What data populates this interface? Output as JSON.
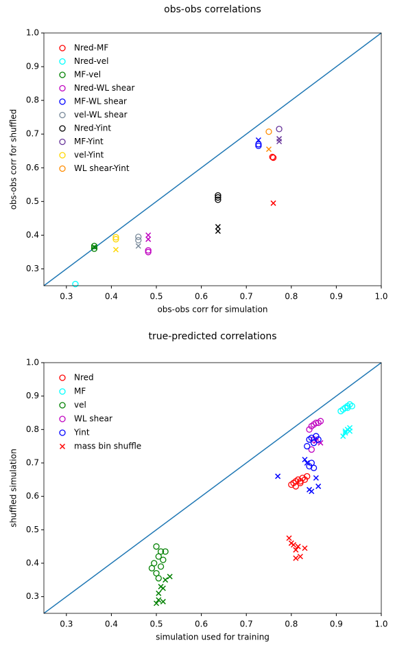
{
  "chart_data": [
    {
      "type": "scatter",
      "title": "obs-obs correlations",
      "xlabel": "obs-obs corr for simulation",
      "ylabel": "obs-obs corr for shuffled",
      "xlim": [
        0.25,
        1
      ],
      "ylim": [
        0.25,
        1
      ],
      "xticks": [
        0.3,
        0.4,
        0.5,
        0.6,
        0.7,
        0.8,
        0.9,
        {
          "value": 1,
          "label": "1.0"
        }
      ],
      "yticks": [
        0.3,
        0.4,
        0.5,
        0.6,
        0.7,
        0.8,
        0.9,
        {
          "value": 1,
          "label": "1.0"
        }
      ],
      "legend": "upper left",
      "series": [
        {
          "name": "Nred-MF",
          "color": "#ff0000",
          "x": [
            0.76,
            0.758
          ],
          "values": [
            0.63,
            0.632
          ],
          "cross_x": [
            0.76
          ],
          "cross_values": [
            0.495
          ]
        },
        {
          "name": "Nred-vel",
          "color": "#00ffff",
          "x": [
            0.32
          ],
          "values": [
            0.255
          ],
          "cross_x": [],
          "cross_values": []
        },
        {
          "name": "MF-vel",
          "color": "#008000",
          "x": [
            0.362,
            0.362
          ],
          "values": [
            0.36,
            0.368
          ],
          "cross_x": [
            0.362
          ],
          "cross_values": [
            0.365
          ]
        },
        {
          "name": "Nred-WL shear",
          "color": "#bf00bf",
          "x": [
            0.482,
            0.482
          ],
          "values": [
            0.35,
            0.355
          ],
          "cross_x": [
            0.482,
            0.482
          ],
          "cross_values": [
            0.388,
            0.4
          ]
        },
        {
          "name": "MF-WL shear",
          "color": "#0000ff",
          "x": [
            0.727,
            0.727
          ],
          "values": [
            0.665,
            0.67
          ],
          "cross_x": [
            0.727
          ],
          "cross_values": [
            0.682
          ]
        },
        {
          "name": "vel-WL shear",
          "color": "#778899",
          "x": [
            0.46,
            0.46
          ],
          "values": [
            0.385,
            0.395
          ],
          "cross_x": [
            0.46
          ],
          "cross_values": [
            0.368
          ]
        },
        {
          "name": "Nred-Yint",
          "color": "#000000",
          "x": [
            0.637,
            0.637,
            0.637
          ],
          "values": [
            0.505,
            0.512,
            0.518
          ],
          "cross_x": [
            0.637,
            0.637
          ],
          "cross_values": [
            0.412,
            0.425
          ]
        },
        {
          "name": "MF-Yint",
          "color": "#663399",
          "x": [
            0.773
          ],
          "values": [
            0.715
          ],
          "cross_x": [
            0.773,
            0.773
          ],
          "cross_values": [
            0.678,
            0.686
          ]
        },
        {
          "name": "vel-Yint",
          "color": "#ffd700",
          "x": [
            0.41,
            0.41
          ],
          "values": [
            0.388,
            0.394
          ],
          "cross_x": [
            0.41
          ],
          "cross_values": [
            0.357
          ]
        },
        {
          "name": "WL shear-Yint",
          "color": "#ff8c00",
          "x": [
            0.75
          ],
          "values": [
            0.707
          ],
          "cross_x": [
            0.75
          ],
          "cross_values": [
            0.655
          ]
        }
      ]
    },
    {
      "type": "scatter",
      "title": "true-predicted correlations",
      "xlabel": "simulation used for training",
      "ylabel": "shuffled simulation",
      "xlim": [
        0.25,
        1
      ],
      "ylim": [
        0.25,
        1
      ],
      "xticks": [
        0.3,
        0.4,
        0.5,
        0.6,
        0.7,
        0.8,
        0.9,
        {
          "value": 1,
          "label": "1.0"
        }
      ],
      "yticks": [
        0.3,
        0.4,
        0.5,
        0.6,
        0.7,
        0.8,
        0.9,
        {
          "value": 1,
          "label": "1.0"
        }
      ],
      "legend": "upper left",
      "cross_legend": {
        "name": "mass bin shuffle",
        "color": "#ff0000"
      },
      "series": [
        {
          "name": "Nred",
          "color": "#ff0000",
          "x": [
            0.8,
            0.805,
            0.81,
            0.815,
            0.82,
            0.825,
            0.83,
            0.835,
            0.81,
            0.82
          ],
          "values": [
            0.635,
            0.64,
            0.645,
            0.65,
            0.645,
            0.655,
            0.65,
            0.66,
            0.63,
            0.64
          ],
          "cross_x": [
            0.795,
            0.805,
            0.81,
            0.815,
            0.82,
            0.83,
            0.81,
            0.8
          ],
          "cross_values": [
            0.475,
            0.455,
            0.44,
            0.45,
            0.42,
            0.445,
            0.415,
            0.46
          ]
        },
        {
          "name": "MF",
          "color": "#00ffff",
          "x": [
            0.91,
            0.915,
            0.92,
            0.925,
            0.93,
            0.935,
            0.925
          ],
          "values": [
            0.855,
            0.86,
            0.865,
            0.87,
            0.875,
            0.87,
            0.865
          ],
          "cross_x": [
            0.915,
            0.92,
            0.925,
            0.93,
            0.92,
            0.93
          ],
          "cross_values": [
            0.78,
            0.795,
            0.8,
            0.805,
            0.79,
            0.795
          ]
        },
        {
          "name": "vel",
          "color": "#008000",
          "x": [
            0.49,
            0.495,
            0.5,
            0.505,
            0.51,
            0.515,
            0.52,
            0.5,
            0.51,
            0.505
          ],
          "values": [
            0.385,
            0.4,
            0.45,
            0.42,
            0.435,
            0.41,
            0.435,
            0.37,
            0.39,
            0.355
          ],
          "cross_x": [
            0.5,
            0.505,
            0.51,
            0.515,
            0.52,
            0.53,
            0.505,
            0.515
          ],
          "cross_values": [
            0.28,
            0.29,
            0.33,
            0.325,
            0.35,
            0.36,
            0.31,
            0.285
          ]
        },
        {
          "name": "WL shear",
          "color": "#bf00bf",
          "x": [
            0.84,
            0.845,
            0.85,
            0.855,
            0.86,
            0.865,
            0.845,
            0.85
          ],
          "values": [
            0.8,
            0.81,
            0.815,
            0.82,
            0.82,
            0.825,
            0.74,
            0.77
          ],
          "cross_x": [
            0.855,
            0.865
          ],
          "cross_values": [
            0.765,
            0.76
          ]
        },
        {
          "name": "Yint",
          "color": "#0000ff",
          "x": [
            0.835,
            0.84,
            0.845,
            0.85,
            0.855,
            0.86,
            0.84,
            0.845,
            0.85
          ],
          "values": [
            0.75,
            0.77,
            0.775,
            0.76,
            0.78,
            0.77,
            0.69,
            0.7,
            0.685
          ],
          "cross_x": [
            0.77,
            0.835,
            0.84,
            0.845,
            0.855,
            0.83,
            0.86
          ],
          "cross_values": [
            0.66,
            0.7,
            0.62,
            0.615,
            0.655,
            0.71,
            0.63
          ]
        }
      ]
    }
  ]
}
